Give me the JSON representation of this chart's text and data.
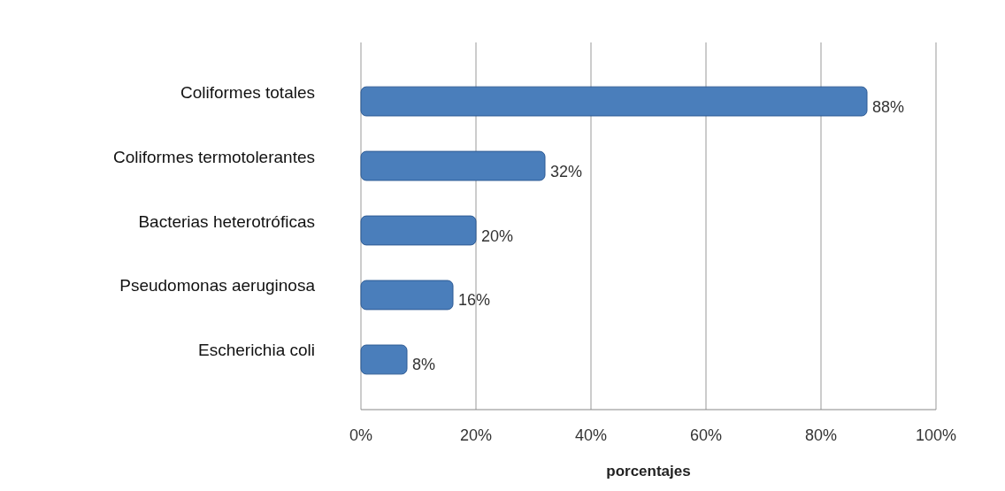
{
  "chart_data": {
    "type": "bar",
    "orientation": "horizontal",
    "xlabel": "porcentajes",
    "categories": [
      "Coliformes totales",
      "Coliformes termotolerantes",
      "Bacterias heterotróficas",
      "Pseudomonas aeruginosa",
      "Escherichia coli"
    ],
    "values": [
      88,
      32,
      20,
      16,
      8
    ],
    "color": "#4a7ebb",
    "value_labels": [
      "88%",
      "32%",
      "20%",
      "16%",
      "8%"
    ],
    "xlim": [
      0,
      100
    ],
    "xticks": [
      {
        "value": 0,
        "label": "0%"
      },
      {
        "value": 20,
        "label": "20%"
      },
      {
        "value": 40,
        "label": "40%"
      },
      {
        "value": 60,
        "label": "60%"
      },
      {
        "value": 80,
        "label": "80%"
      },
      {
        "value": 100,
        "label": "100%"
      }
    ],
    "grid": "x"
  }
}
